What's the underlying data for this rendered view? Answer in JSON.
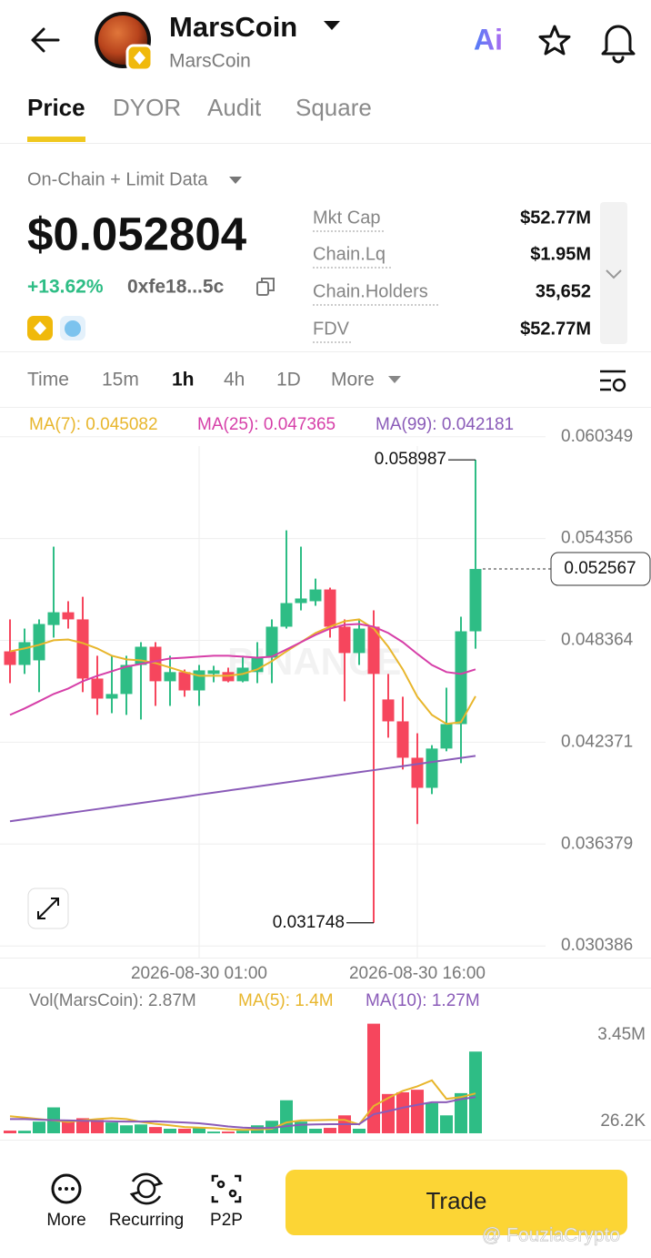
{
  "header": {
    "title": "MarsCoin",
    "subtitle": "MarsCoin",
    "ai": "Ai"
  },
  "tabs": [
    "Price",
    "DYOR",
    "Audit",
    "Square"
  ],
  "source": "On-Chain + Limit Data",
  "price": "$0.052804",
  "change": "+13.62%",
  "address": "0xfe18...5c",
  "stats": [
    {
      "label": "Mkt Cap",
      "value": "$52.77M"
    },
    {
      "label": "Chain.Lq",
      "value": "$1.95M"
    },
    {
      "label": "Chain.Holders",
      "value": "35,652"
    },
    {
      "label": "FDV",
      "value": "$52.77M"
    }
  ],
  "intervals": [
    "Time",
    "15m",
    "1h",
    "4h",
    "1D",
    "More"
  ],
  "chart_watermark": "BINANCE",
  "chart_data": [
    {
      "type": "candlestick",
      "categories": [
        null,
        null,
        null,
        null,
        null,
        null,
        null,
        null,
        null,
        null,
        null,
        null,
        null,
        "2026-08-30 01:00",
        null,
        null,
        null,
        null,
        null,
        null,
        null,
        null,
        null,
        null,
        null,
        null,
        null,
        null,
        "2026-08-30 16:00",
        null,
        null,
        null,
        null
      ],
      "open": [
        0.04772,
        0.04692,
        0.04719,
        0.04927,
        0.05002,
        0.0496,
        0.04612,
        0.04494,
        0.04521,
        0.04692,
        0.04799,
        0.04596,
        0.0465,
        0.04542,
        0.04639,
        0.0465,
        0.04596,
        0.0465,
        0.04735,
        0.04917,
        0.05056,
        0.05067,
        0.05136,
        0.04917,
        0.04762,
        0.04917,
        0.04489,
        0.0436,
        0.04146,
        0.03969,
        0.042,
        0.04344,
        0.0489
      ],
      "high": [
        0.0496,
        0.04906,
        0.0496,
        0.05388,
        0.05067,
        0.05093,
        0.04746,
        0.04746,
        0.04746,
        0.04826,
        0.04826,
        0.04746,
        0.04665,
        0.04692,
        0.04687,
        0.04676,
        0.04746,
        0.04826,
        0.0496,
        0.05484,
        0.05388,
        0.052,
        0.05147,
        0.0496,
        0.0496,
        0.05013,
        0.04639,
        0.04505,
        0.0429,
        0.0422,
        0.04558,
        0.04976,
        0.058987
      ],
      "low": [
        0.04585,
        0.04639,
        0.04532,
        0.04853,
        0.04906,
        0.04532,
        0.04398,
        0.04408,
        0.04398,
        0.04371,
        0.04451,
        0.04451,
        0.04505,
        0.04451,
        0.0459,
        0.0459,
        0.0459,
        0.04585,
        0.04585,
        0.04906,
        0.05013,
        0.0504,
        0.04853,
        0.04478,
        0.04692,
        0.031748,
        0.04264,
        0.04077,
        0.03756,
        0.03932,
        0.04184,
        0.04114,
        0.04788
      ],
      "close": [
        0.04692,
        0.04826,
        0.04933,
        0.05002,
        0.0496,
        0.04612,
        0.04494,
        0.04521,
        0.04692,
        0.04799,
        0.04596,
        0.0465,
        0.04542,
        0.0466,
        0.0466,
        0.04596,
        0.04676,
        0.04735,
        0.04917,
        0.05056,
        0.05083,
        0.05136,
        0.04917,
        0.04762,
        0.04906,
        0.04639,
        0.0436,
        0.04146,
        0.03969,
        0.042,
        0.04344,
        0.0489,
        0.052567
      ],
      "up_color": "#2ebd85",
      "down_color": "#f6465d",
      "series": [
        {
          "name": "MA(7): 0.045082",
          "color": "#e8b62c",
          "values": [
            0.04772,
            0.04789,
            0.0481,
            0.04837,
            0.04842,
            0.04821,
            0.04789,
            0.04746,
            0.04725,
            0.04719,
            0.04703,
            0.04677,
            0.0465,
            0.04628,
            0.04628,
            0.04628,
            0.04639,
            0.04666,
            0.04714,
            0.04772,
            0.04826,
            0.0488,
            0.04917,
            0.04949,
            0.0496,
            0.04906,
            0.04799,
            0.04666,
            0.04505,
            0.04398,
            0.04345,
            0.04355,
            0.04508
          ]
        },
        {
          "name": "MA(25): 0.047365",
          "color": "#d63fa8",
          "values": [
            0.04398,
            0.04436,
            0.04478,
            0.04521,
            0.04553,
            0.04596,
            0.04628,
            0.04655,
            0.04682,
            0.04698,
            0.04714,
            0.0473,
            0.04735,
            0.04741,
            0.04746,
            0.04746,
            0.04741,
            0.04735,
            0.04741,
            0.04783,
            0.04826,
            0.04869,
            0.04906,
            0.04928,
            0.04933,
            0.04917,
            0.0488,
            0.04826,
            0.04757,
            0.04692,
            0.0465,
            0.04639,
            0.04666
          ]
        },
        {
          "name": "MA(99): 0.042181",
          "color": "#8a5bb8",
          "values": [
            0.03772,
            0.03784,
            0.03796,
            0.03808,
            0.0382,
            0.03832,
            0.03844,
            0.03856,
            0.03868,
            0.0388,
            0.03892,
            0.03904,
            0.03916,
            0.03929,
            0.03941,
            0.03953,
            0.03965,
            0.03977,
            0.03989,
            0.04001,
            0.04013,
            0.04025,
            0.04037,
            0.04049,
            0.04061,
            0.04073,
            0.04085,
            0.04097,
            0.04109,
            0.04121,
            0.04133,
            0.04145,
            0.04157
          ]
        }
      ],
      "ylim": [
        0.0297,
        0.0613
      ],
      "yticks": [
        0.060349,
        0.054356,
        0.048364,
        0.042371,
        0.036379,
        0.030386
      ],
      "grid": true
    },
    {
      "type": "bar",
      "title": "Vol(MarsCoin): 2.87M",
      "values": [
        94000,
        90000,
        410000,
        910000,
        410000,
        530000,
        470000,
        380000,
        280000,
        310000,
        220000,
        160000,
        160000,
        190000,
        60000,
        60000,
        90000,
        280000,
        440000,
        1160000,
        410000,
        160000,
        190000,
        630000,
        160000,
        3850000,
        1380000,
        1440000,
        1530000,
        1060000,
        630000,
        1410000,
        2870000
      ],
      "series": [
        {
          "name": "MA(5): 1.4M",
          "color": "#e8b62c",
          "values": [
            600000,
            550000,
            500000,
            450000,
            400000,
            450000,
            500000,
            530000,
            500000,
            400000,
            330000,
            280000,
            220000,
            200000,
            180000,
            140000,
            120000,
            130000,
            160000,
            380000,
            450000,
            460000,
            470000,
            470000,
            310000,
            960000,
            1240000,
            1490000,
            1650000,
            1860000,
            1210000,
            1270000,
            1400000
          ]
        },
        {
          "name": "MA(10): 1.27M",
          "color": "#8a5bb8",
          "values": [
            500000,
            500000,
            480000,
            460000,
            450000,
            440000,
            430000,
            420000,
            410000,
            410000,
            420000,
            400000,
            380000,
            350000,
            300000,
            240000,
            200000,
            180000,
            190000,
            250000,
            300000,
            310000,
            320000,
            320000,
            320000,
            670000,
            780000,
            900000,
            1000000,
            1090000,
            1090000,
            1200000,
            1270000
          ]
        }
      ],
      "ylim": [
        0,
        4700000
      ],
      "yticks": [
        {
          "value": 3450000,
          "label": "3.45M"
        },
        {
          "value": 26200,
          "label": "26.2K"
        }
      ],
      "grid": false
    }
  ],
  "nav": [
    "More",
    "Recurring",
    "P2P"
  ],
  "trade": "Trade",
  "watermark": "@ FouziaCrypto"
}
